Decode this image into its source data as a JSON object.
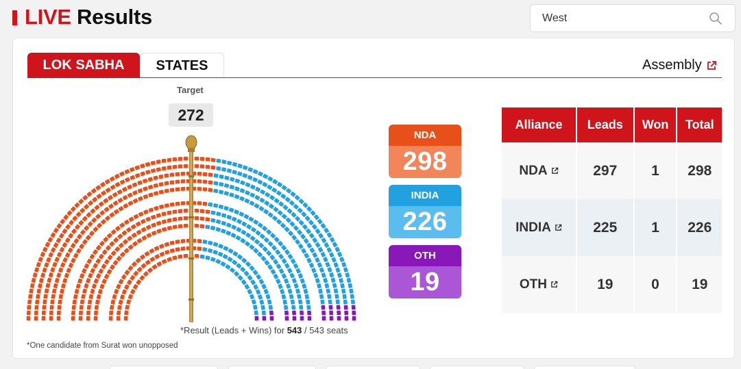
{
  "header": {
    "title_live": "LIVE",
    "title_rest": "Results",
    "search_value": "West",
    "search_icon": "search-icon"
  },
  "tabs": [
    {
      "label": "LOK SABHA",
      "active": true
    },
    {
      "label": "STATES",
      "active": false
    }
  ],
  "assembly_link": {
    "label": "Assembly",
    "icon": "external-link-icon"
  },
  "target": {
    "label": "Target",
    "value": "272"
  },
  "parliament": {
    "total_seats": 543,
    "seats": {
      "NDA": 298,
      "INDIA": 226,
      "OTH": 19
    }
  },
  "alliance_boxes": [
    {
      "name": "NDA",
      "value": "298"
    },
    {
      "name": "INDIA",
      "value": "226"
    },
    {
      "name": "OTH",
      "value": "19"
    }
  ],
  "table": {
    "headers": [
      "Alliance",
      "Leads",
      "Won",
      "Total"
    ],
    "rows": [
      {
        "alliance": "NDA",
        "leads": "297",
        "won": "1",
        "total": "298"
      },
      {
        "alliance": "INDIA",
        "leads": "225",
        "won": "1",
        "total": "226"
      },
      {
        "alliance": "OTH",
        "leads": "19",
        "won": "0",
        "total": "19"
      }
    ]
  },
  "footnotes": {
    "seats_prefix": "*Result (Leads + Wins) for ",
    "seats_counted": "543",
    "seats_sep": " / ",
    "seats_total": "543 seats",
    "surat": "*One candidate from Surat won unopposed"
  },
  "colors": {
    "brand_red": "#d0141c",
    "nda": "#e8501a",
    "nda_light": "#f2855a",
    "india": "#22a1e0",
    "india_light": "#5bbcee",
    "oth": "#8a17b8",
    "oth_light": "#aa56d6",
    "mace": "#b58a3a"
  }
}
